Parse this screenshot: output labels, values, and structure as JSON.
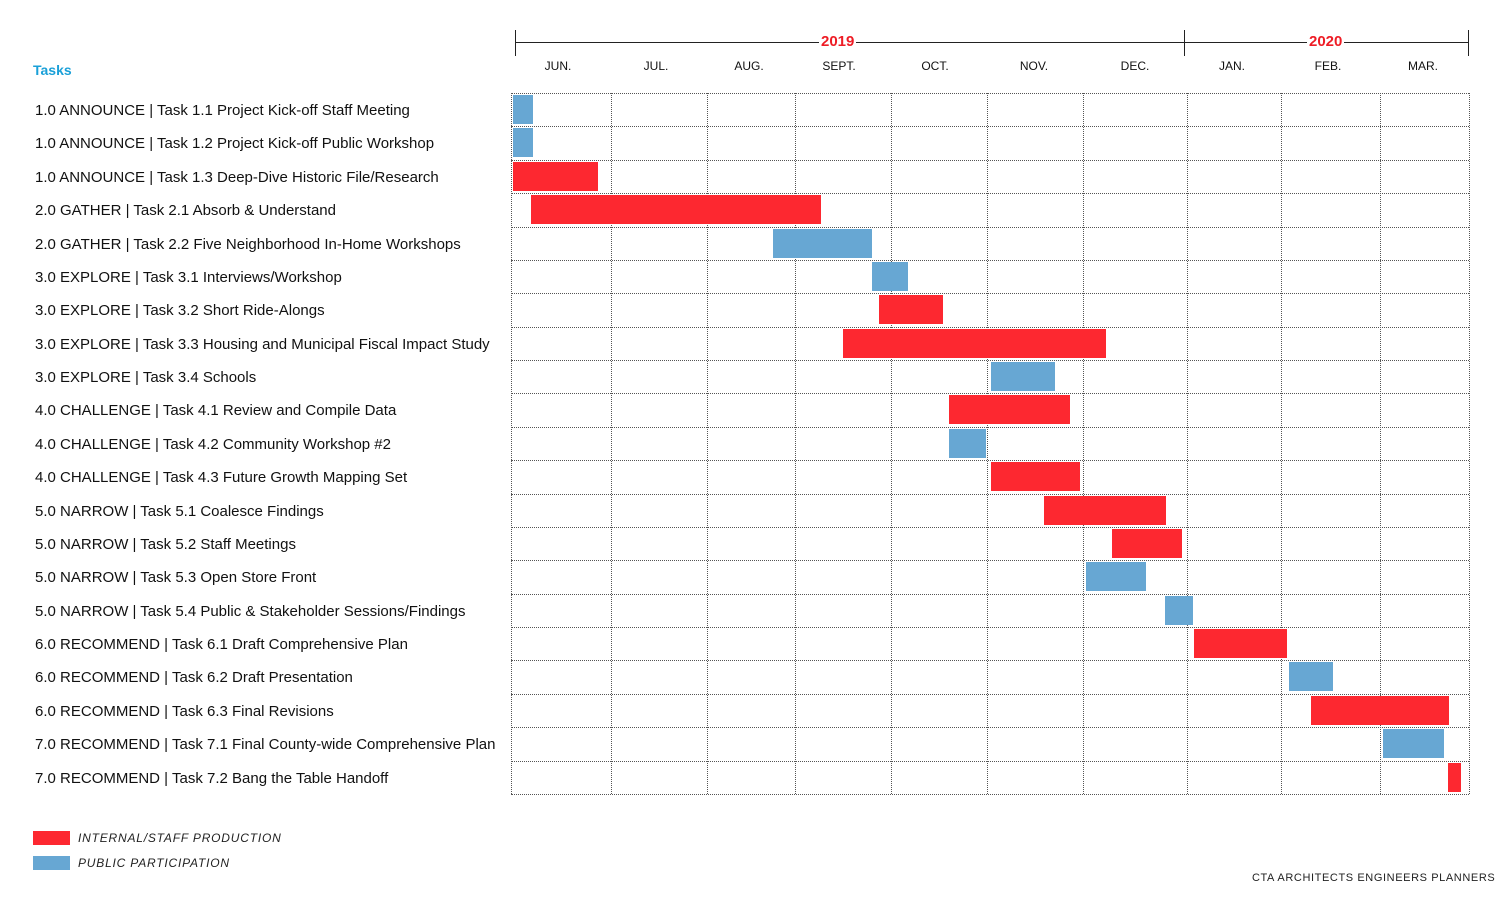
{
  "header": {
    "tasks_title": "Tasks"
  },
  "colors": {
    "internal": "#fd2830",
    "public": "#67a7d3",
    "year": "#ee1c25",
    "header": "#1aa0d8"
  },
  "timeline": {
    "years": [
      {
        "label": "2019"
      },
      {
        "label": "2020"
      }
    ],
    "months": [
      "JUN.",
      "JUL.",
      "AUG.",
      "SEPT.",
      "OCT.",
      "NOV.",
      "DEC.",
      "JAN.",
      "FEB.",
      "MAR."
    ]
  },
  "chart_data": {
    "type": "gantt",
    "x_unit": "month (0 = start of JUN. 2019, 10 = end of MAR. 2020)",
    "tasks": [
      {
        "label": "1.0 ANNOUNCE | Task 1.1 Project Kick-off Staff Meeting",
        "category": "public",
        "start": 0.02,
        "end": 0.22
      },
      {
        "label": "1.0 ANNOUNCE | Task 1.2 Project Kick-off Public Workshop",
        "category": "public",
        "start": 0.02,
        "end": 0.22
      },
      {
        "label": "1.0 ANNOUNCE | Task 1.3 Deep-Dive Historic File/Research",
        "category": "internal",
        "start": 0.02,
        "end": 0.87
      },
      {
        "label": "2.0 GATHER | Task 2.1 Absorb & Understand",
        "category": "internal",
        "start": 0.2,
        "end": 3.27
      },
      {
        "label": "2.0 GATHER | Task 2.2 Five Neighborhood In-Home Workshops",
        "category": "public",
        "start": 2.75,
        "end": 3.8
      },
      {
        "label": "3.0 EXPLORE | Task 3.1 Interviews/Workshop",
        "category": "public",
        "start": 3.8,
        "end": 4.17
      },
      {
        "label": "3.0 EXPLORE | Task 3.2 Short Ride-Alongs",
        "category": "internal",
        "start": 3.88,
        "end": 4.55
      },
      {
        "label": "3.0 EXPLORE | Task 3.3 Housing and Municipal Fiscal Impact Study",
        "category": "internal",
        "start": 3.5,
        "end": 6.22
      },
      {
        "label": "3.0 EXPLORE | Task 3.4 Schools",
        "category": "public",
        "start": 5.04,
        "end": 5.71
      },
      {
        "label": "4.0 CHALLENGE | Task 4.1 Review and Compile Data",
        "category": "internal",
        "start": 4.6,
        "end": 5.86
      },
      {
        "label": "4.0 CHALLENGE | Task 4.2 Community Workshop #2",
        "category": "public",
        "start": 4.6,
        "end": 4.99
      },
      {
        "label": "4.0 CHALLENGE | Task 4.3 Future Growth Mapping Set",
        "category": "internal",
        "start": 5.04,
        "end": 5.97
      },
      {
        "label": "5.0 NARROW | Task 5.1 Coalesce Findings",
        "category": "internal",
        "start": 5.59,
        "end": 6.79
      },
      {
        "label": "5.0 NARROW | Task 5.2 Staff Meetings",
        "category": "internal",
        "start": 6.28,
        "end": 6.95
      },
      {
        "label": "5.0 NARROW | Task 5.3 Open Store Front",
        "category": "public",
        "start": 6.03,
        "end": 6.61
      },
      {
        "label": "5.0 NARROW | Task 5.4 Public & Stakeholder Sessions/Findings",
        "category": "public",
        "start": 6.79,
        "end": 7.07
      },
      {
        "label": "6.0 RECOMMEND | Task 6.1 Draft Comprehensive Plan",
        "category": "internal",
        "start": 7.07,
        "end": 8.06
      },
      {
        "label": "6.0 RECOMMEND | Task 6.2 Draft Presentation",
        "category": "public",
        "start": 8.08,
        "end": 8.52
      },
      {
        "label": "6.0 RECOMMEND | Task 6.3 Final Revisions",
        "category": "internal",
        "start": 8.3,
        "end": 9.77
      },
      {
        "label": "7.0 RECOMMEND | Task 7.1 Final County-wide Comprehensive Plan",
        "category": "public",
        "start": 9.03,
        "end": 9.72
      },
      {
        "label": "7.0 RECOMMEND | Task 7.2 Bang the Table Handoff",
        "category": "internal",
        "start": 9.76,
        "end": 9.91
      }
    ],
    "legend": [
      {
        "category": "internal",
        "label": "INTERNAL/STAFF PRODUCTION"
      },
      {
        "category": "public",
        "label": "PUBLIC PARTICIPATION"
      }
    ]
  },
  "footer": {
    "credit": "CTA ARCHITECTS ENGINEERS PLANNERS"
  }
}
